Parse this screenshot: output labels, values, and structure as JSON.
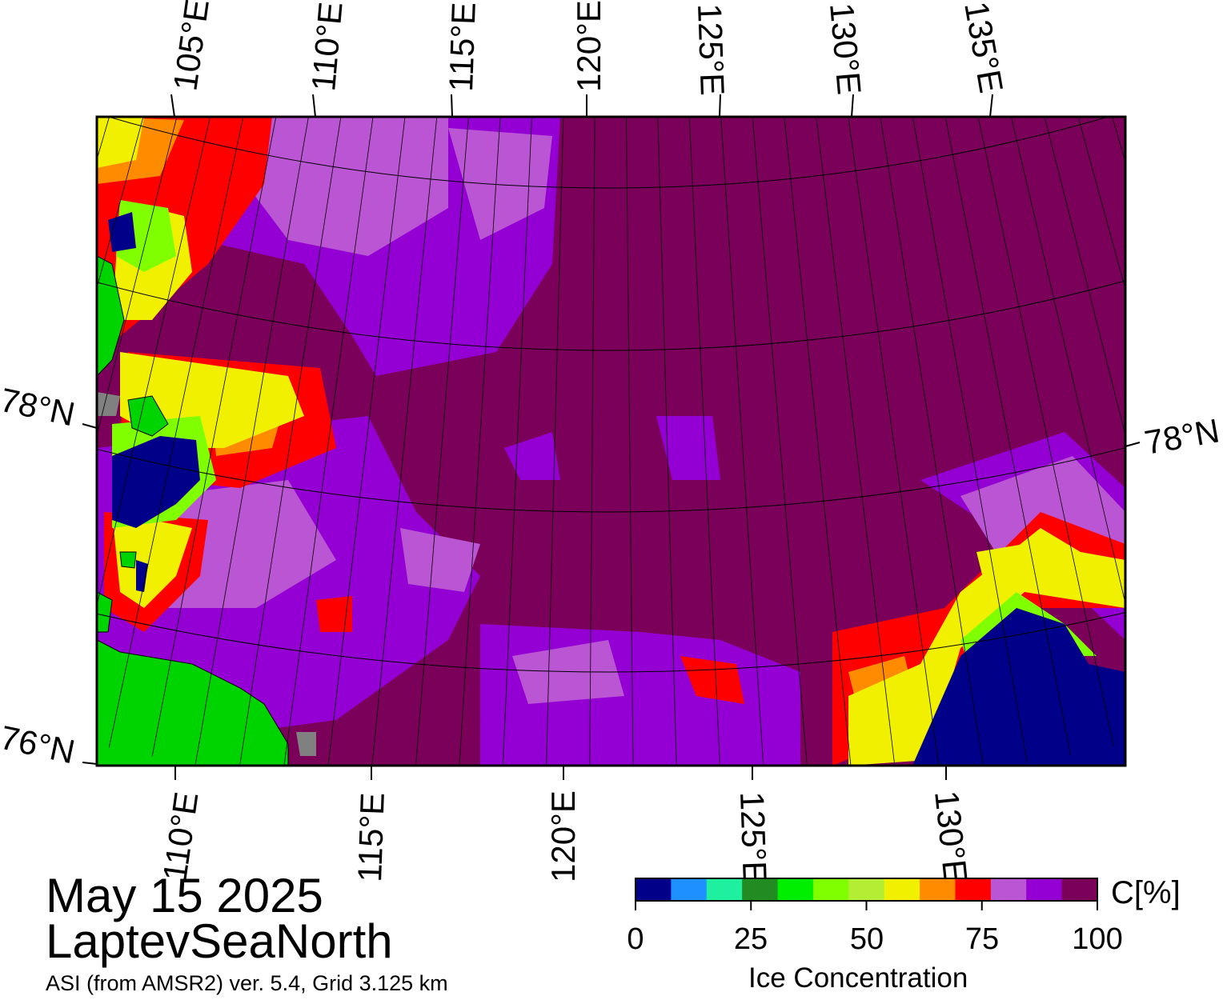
{
  "title": {
    "date": "May 15 2025",
    "region": "LaptevSeaNorth",
    "subtitle": "ASI (from AMSR2) ver. 5.4,  Grid 3.125 km"
  },
  "map": {
    "top_longitude_labels": [
      "105°E",
      "110°E",
      "115°E",
      "120°E",
      "125°E",
      "130°E",
      "135°E"
    ],
    "bottom_longitude_labels": [
      "110°E",
      "115°E",
      "120°E",
      "125°E",
      "130°E"
    ],
    "left_latitude_labels": [
      "78°N",
      "76°N"
    ],
    "right_latitude_labels": [
      "78°N"
    ],
    "colors": {
      "background_ice": "#7a0059",
      "land": "#00d400",
      "land_mask": "#808080",
      "open_water": "#000088"
    }
  },
  "colorbar": {
    "title": "Ice Concentration",
    "unit_label": "C[%]",
    "ticks": [
      "0",
      "25",
      "50",
      "75",
      "100"
    ],
    "tick_values": [
      0,
      25,
      50,
      75,
      100
    ],
    "range": [
      0,
      100
    ],
    "colors": [
      "#000088",
      "#1e90ff",
      "#1ef0a0",
      "#228b22",
      "#00ee00",
      "#7fff00",
      "#b4ee34",
      "#f0f000",
      "#ff8c00",
      "#ff0000",
      "#ba55d3",
      "#9400d3",
      "#7a0059"
    ]
  }
}
